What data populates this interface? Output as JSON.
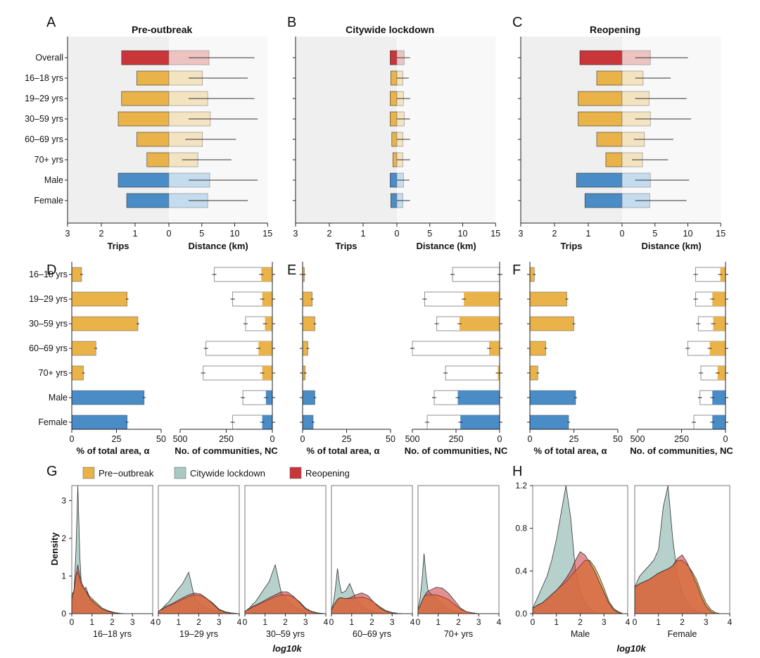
{
  "figure": {
    "panel_letters": [
      "A",
      "B",
      "C",
      "D",
      "E",
      "F",
      "G",
      "H"
    ],
    "colors": {
      "pre": "#eab34a",
      "pre_light": "#f3e3c0",
      "lockdown": "#a9c9c3",
      "reopen": "#c8363a",
      "reopen_light": "#ecc3c0",
      "male": "#4a8cc6",
      "male_light": "#c4dced",
      "female": "#4a8cc6",
      "female_light": "#c4dced",
      "overall": "#c8363a",
      "overall_light": "#ecc3c0",
      "bg_shade": "#efefef"
    }
  },
  "chart_data": [
    {
      "panel": "A",
      "type": "bar",
      "title": "Pre-outbreak",
      "categories": [
        "Overall",
        "16–18 yrs",
        "19–29 yrs",
        "30–59 yrs",
        "60–69 yrs",
        "70+ yrs",
        "Male",
        "Female"
      ],
      "left_label": "Trips",
      "right_label": "Distance (km)",
      "left_ticks": [
        "3",
        "2",
        "1",
        "0"
      ],
      "right_ticks": [
        "0",
        "5",
        "10",
        "15"
      ],
      "left_lim": [
        0,
        3
      ],
      "right_lim": [
        0,
        15
      ],
      "trips": [
        1.4,
        0.95,
        1.4,
        1.5,
        0.95,
        0.65,
        1.5,
        1.25
      ],
      "distance": [
        6.1,
        5.1,
        5.9,
        6.3,
        5.1,
        4.4,
        6.2,
        5.9
      ],
      "distance_err": [
        [
          3,
          13
        ],
        [
          3,
          12
        ],
        [
          3,
          13
        ],
        [
          3,
          13.5
        ],
        [
          2.5,
          10.2
        ],
        [
          2,
          9.5
        ],
        [
          3,
          13.5
        ],
        [
          3,
          12
        ]
      ]
    },
    {
      "panel": "B",
      "type": "bar",
      "title": "Citywide lockdown",
      "categories": [
        "Overall",
        "16–18 yrs",
        "19–29 yrs",
        "30–59 yrs",
        "60–69 yrs",
        "70+ yrs",
        "Male",
        "Female"
      ],
      "left_label": "Trips",
      "right_label": "Distance (km)",
      "left_ticks": [
        "3",
        "2",
        "1",
        "0"
      ],
      "right_ticks": [
        "0",
        "5",
        "10",
        "15"
      ],
      "left_lim": [
        0,
        3
      ],
      "right_lim": [
        0,
        15
      ],
      "trips": [
        0.2,
        0.18,
        0.2,
        0.2,
        0.15,
        0.12,
        0.2,
        0.18
      ],
      "distance": [
        1.1,
        0.9,
        1.0,
        1.1,
        0.9,
        0.9,
        1.0,
        0.9
      ],
      "distance_err": [
        [
          0,
          2
        ],
        [
          0,
          1.8
        ],
        [
          0,
          2
        ],
        [
          0,
          2
        ],
        [
          0,
          2
        ],
        [
          0,
          2
        ],
        [
          0,
          1.9
        ],
        [
          0,
          2
        ]
      ]
    },
    {
      "panel": "C",
      "type": "bar",
      "title": "Reopening",
      "categories": [
        "Overall",
        "16–18 yrs",
        "19–29 yrs",
        "30–59 yrs",
        "60–69 yrs",
        "70+ yrs",
        "Male",
        "Female"
      ],
      "left_label": "Trips",
      "right_label": "Distance (km)",
      "left_ticks": [
        "3",
        "2",
        "1",
        "0"
      ],
      "right_ticks": [
        "0",
        "5",
        "10",
        "15"
      ],
      "left_lim": [
        0,
        3
      ],
      "right_lim": [
        0,
        15
      ],
      "trips": [
        1.25,
        0.75,
        1.3,
        1.3,
        0.75,
        0.48,
        1.35,
        1.1
      ],
      "distance": [
        4.3,
        3.2,
        4.1,
        4.3,
        3.4,
        3.1,
        4.3,
        4.2
      ],
      "distance_err": [
        [
          2,
          10
        ],
        [
          2,
          7.4
        ],
        [
          2,
          9.8
        ],
        [
          2,
          10.5
        ],
        [
          1.8,
          7.8
        ],
        [
          1.5,
          7
        ],
        [
          2,
          10.2
        ],
        [
          2,
          9.8
        ]
      ]
    },
    {
      "panel": "D",
      "type": "bar",
      "categories": [
        "16–18 yrs",
        "19–29 yrs",
        "30–59 yrs",
        "60–69 yrs",
        "70+ yrs",
        "Male",
        "Female"
      ],
      "alpha_label": "% of total area, α",
      "alpha_ticks": [
        "0",
        "25",
        "50"
      ],
      "alpha_lim": [
        0,
        50
      ],
      "alpha": [
        5.5,
        31,
        37,
        13.5,
        6.5,
        40.5,
        31
      ],
      "nc_label": "No. of communities, NC",
      "nc_ticks": [
        "500",
        "250",
        "0"
      ],
      "nc_lim": [
        0,
        500
      ],
      "nc_total": [
        315,
        215,
        145,
        360,
        375,
        160,
        215
      ],
      "nc_filled": [
        60,
        55,
        40,
        75,
        55,
        35,
        55
      ]
    },
    {
      "panel": "E",
      "type": "bar",
      "categories": [
        "16–18 yrs",
        "19–29 yrs",
        "30–59 yrs",
        "60–69 yrs",
        "70+ yrs",
        "Male",
        "Female"
      ],
      "alpha_label": "% of total area, α",
      "alpha_ticks": [
        "0",
        "25",
        "50"
      ],
      "alpha_lim": [
        0,
        50
      ],
      "alpha": [
        1,
        5.5,
        7,
        3,
        1.5,
        7,
        6
      ],
      "nc_label": "No. of communities, NC",
      "nc_ticks": [
        "500",
        "250",
        "0"
      ],
      "nc_lim": [
        0,
        500
      ],
      "nc_total": [
        270,
        430,
        360,
        500,
        310,
        375,
        415
      ],
      "nc_filled": [
        0,
        205,
        230,
        60,
        10,
        240,
        225
      ]
    },
    {
      "panel": "F",
      "type": "bar",
      "categories": [
        "16–18 yrs",
        "19–29 yrs",
        "30–59 yrs",
        "60–69 yrs",
        "70+ yrs",
        "Male",
        "Female"
      ],
      "alpha_label": "% of total area, α",
      "alpha_ticks": [
        "0",
        "25",
        "50"
      ],
      "alpha_lim": [
        0,
        50
      ],
      "alpha": [
        2.5,
        21,
        25,
        9,
        4.5,
        26,
        22
      ],
      "nc_label": "No. of communities, NC",
      "nc_ticks": [
        "500",
        "250",
        "0"
      ],
      "nc_lim": [
        0,
        500
      ],
      "nc_total": [
        170,
        170,
        155,
        215,
        140,
        145,
        180
      ],
      "nc_filled": [
        30,
        75,
        70,
        90,
        45,
        75,
        75
      ]
    },
    {
      "panel": "G",
      "type": "area",
      "legend": [
        "Pre−outbreak",
        "Citywide lockdown",
        "Reopening"
      ],
      "ylabel": "Density",
      "xlabel": "log10k",
      "xlim": [
        0,
        4
      ],
      "ylim": [
        0,
        3.4
      ],
      "yticks": [
        "0",
        "1",
        "2",
        "3"
      ],
      "xticks": [
        "0",
        "1",
        "2",
        "3",
        "4"
      ],
      "subplots": [
        "16–18 yrs",
        "19–29 yrs",
        "30–59 yrs",
        "60–69 yrs",
        "70+ yrs"
      ],
      "x": [
        0,
        0.1,
        0.2,
        0.3,
        0.4,
        0.5,
        0.7,
        0.9,
        1.2,
        1.5,
        1.8,
        2.1,
        2.4,
        2.7,
        3.0,
        3.3,
        3.6,
        4.0
      ],
      "densities": [
        {
          "pre": [
            0.5,
            0.6,
            1.0,
            1.1,
            0.9,
            0.75,
            0.6,
            0.45,
            0.3,
            0.15,
            0.08,
            0.03,
            0.01,
            0,
            0,
            0,
            0,
            0
          ],
          "lockdown": [
            0.3,
            0.5,
            1.6,
            3.4,
            1.5,
            0.5,
            0.7,
            0.4,
            0.15,
            0.05,
            0.02,
            0,
            0,
            0,
            0,
            0,
            0,
            0
          ],
          "reopen": [
            0.4,
            0.6,
            1.0,
            1.3,
            1.0,
            0.8,
            0.6,
            0.4,
            0.25,
            0.12,
            0.06,
            0.02,
            0,
            0,
            0,
            0,
            0,
            0
          ]
        },
        {
          "pre": [
            0.05,
            0.1,
            0.12,
            0.15,
            0.18,
            0.2,
            0.25,
            0.3,
            0.38,
            0.45,
            0.5,
            0.48,
            0.4,
            0.28,
            0.12,
            0.05,
            0.02,
            0
          ],
          "lockdown": [
            0.05,
            0.1,
            0.14,
            0.2,
            0.26,
            0.3,
            0.45,
            0.6,
            0.8,
            1.1,
            0.4,
            0.25,
            0.15,
            0.08,
            0.04,
            0.02,
            0,
            0
          ],
          "reopen": [
            0.05,
            0.1,
            0.12,
            0.16,
            0.2,
            0.22,
            0.27,
            0.33,
            0.42,
            0.5,
            0.55,
            0.52,
            0.4,
            0.26,
            0.1,
            0.04,
            0.01,
            0
          ]
        },
        {
          "pre": [
            0.05,
            0.1,
            0.12,
            0.15,
            0.18,
            0.2,
            0.25,
            0.3,
            0.38,
            0.45,
            0.5,
            0.5,
            0.44,
            0.32,
            0.15,
            0.06,
            0.02,
            0
          ],
          "lockdown": [
            0.05,
            0.1,
            0.14,
            0.2,
            0.26,
            0.3,
            0.45,
            0.62,
            0.85,
            1.3,
            0.55,
            0.35,
            0.2,
            0.1,
            0.05,
            0.02,
            0,
            0
          ],
          "reopen": [
            0.05,
            0.1,
            0.12,
            0.16,
            0.2,
            0.22,
            0.27,
            0.33,
            0.42,
            0.5,
            0.58,
            0.58,
            0.46,
            0.3,
            0.12,
            0.05,
            0.01,
            0
          ]
        },
        {
          "pre": [
            0.1,
            0.2,
            0.3,
            0.38,
            0.42,
            0.42,
            0.4,
            0.4,
            0.42,
            0.44,
            0.4,
            0.3,
            0.18,
            0.08,
            0.03,
            0.01,
            0,
            0
          ],
          "lockdown": [
            0.1,
            0.3,
            0.7,
            1.2,
            0.8,
            0.55,
            0.6,
            0.8,
            0.4,
            0.2,
            0.1,
            0.05,
            0.02,
            0,
            0,
            0,
            0,
            0
          ],
          "reopen": [
            0.1,
            0.2,
            0.3,
            0.38,
            0.42,
            0.42,
            0.4,
            0.42,
            0.5,
            0.55,
            0.48,
            0.3,
            0.15,
            0.06,
            0.02,
            0,
            0,
            0
          ]
        },
        {
          "pre": [
            0.1,
            0.2,
            0.35,
            0.45,
            0.5,
            0.5,
            0.5,
            0.5,
            0.45,
            0.38,
            0.25,
            0.12,
            0.05,
            0.02,
            0,
            0,
            0,
            0
          ],
          "lockdown": [
            0.1,
            0.4,
            0.9,
            1.6,
            1.0,
            0.6,
            0.5,
            0.4,
            0.25,
            0.12,
            0.05,
            0.02,
            0,
            0,
            0,
            0,
            0,
            0
          ],
          "reopen": [
            0.1,
            0.2,
            0.35,
            0.45,
            0.55,
            0.6,
            0.65,
            0.7,
            0.68,
            0.55,
            0.35,
            0.15,
            0.05,
            0.02,
            0,
            0,
            0,
            0
          ]
        }
      ]
    },
    {
      "panel": "H",
      "type": "area",
      "xlabel": "log10k",
      "xlim": [
        0,
        4
      ],
      "ylim": [
        0,
        1.2
      ],
      "yticks": [
        "0.0",
        "0.4",
        "0.8",
        "1.2"
      ],
      "xticks": [
        "0",
        "1",
        "2",
        "3",
        "4"
      ],
      "subplots": [
        "Male",
        "Female"
      ],
      "x": [
        0,
        0.2,
        0.4,
        0.6,
        0.8,
        1.0,
        1.2,
        1.4,
        1.6,
        1.8,
        2.0,
        2.2,
        2.4,
        2.6,
        2.8,
        3.0,
        3.2,
        3.4,
        3.6,
        3.8,
        4.0
      ],
      "densities": [
        {
          "pre": [
            0.05,
            0.08,
            0.1,
            0.14,
            0.18,
            0.22,
            0.26,
            0.3,
            0.35,
            0.4,
            0.45,
            0.5,
            0.5,
            0.44,
            0.35,
            0.24,
            0.12,
            0.05,
            0.02,
            0,
            0
          ],
          "lockdown": [
            0.05,
            0.15,
            0.25,
            0.35,
            0.5,
            0.7,
            0.95,
            1.2,
            0.9,
            0.4,
            0.2,
            0.1,
            0.05,
            0.02,
            0,
            0,
            0,
            0,
            0,
            0,
            0
          ],
          "reopen": [
            0.05,
            0.08,
            0.1,
            0.14,
            0.18,
            0.22,
            0.27,
            0.33,
            0.4,
            0.5,
            0.58,
            0.55,
            0.48,
            0.4,
            0.3,
            0.2,
            0.1,
            0.04,
            0.01,
            0,
            0
          ]
        },
        {
          "pre": [
            0.25,
            0.28,
            0.3,
            0.32,
            0.35,
            0.38,
            0.4,
            0.42,
            0.45,
            0.5,
            0.5,
            0.46,
            0.4,
            0.32,
            0.2,
            0.1,
            0.04,
            0.01,
            0,
            0,
            0
          ],
          "lockdown": [
            0.25,
            0.35,
            0.4,
            0.45,
            0.5,
            0.6,
            1.0,
            1.3,
            0.7,
            0.35,
            0.2,
            0.1,
            0.05,
            0.02,
            0,
            0,
            0,
            0,
            0,
            0,
            0
          ],
          "reopen": [
            0.25,
            0.28,
            0.3,
            0.32,
            0.35,
            0.38,
            0.4,
            0.42,
            0.45,
            0.52,
            0.55,
            0.48,
            0.38,
            0.28,
            0.16,
            0.07,
            0.02,
            0,
            0,
            0,
            0
          ]
        }
      ]
    }
  ]
}
